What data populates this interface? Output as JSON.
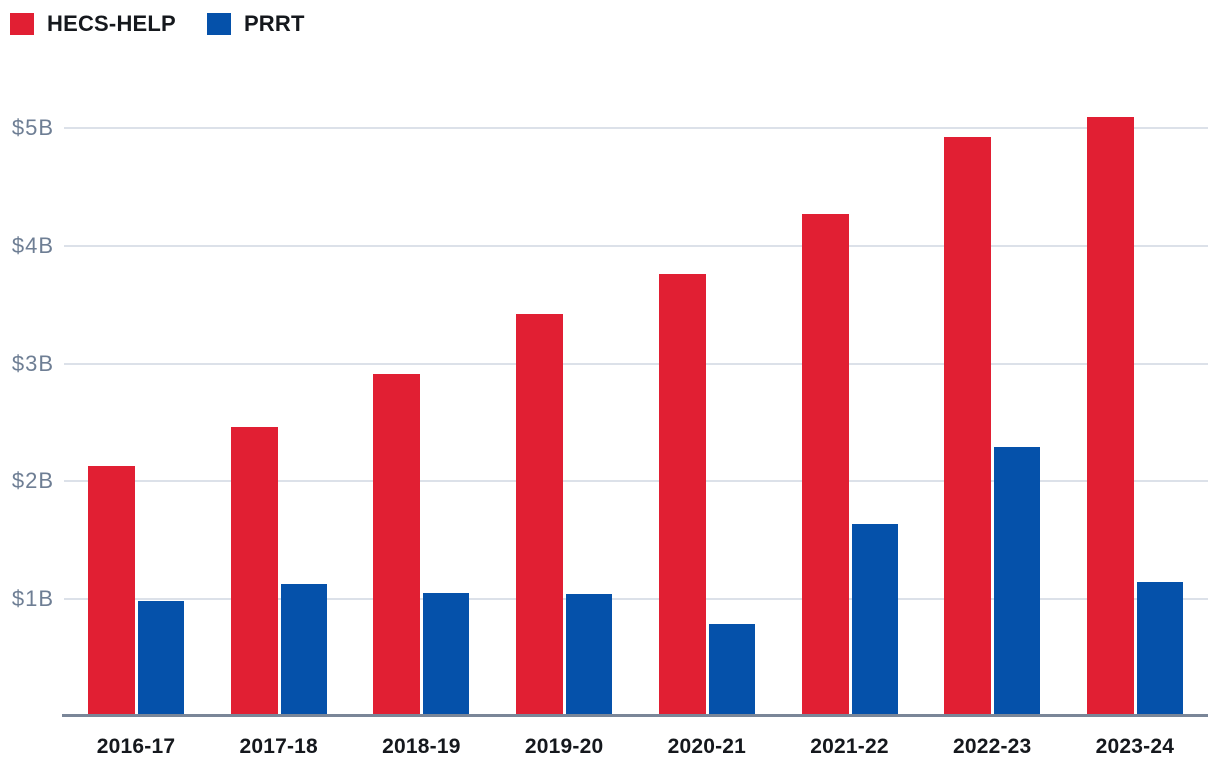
{
  "chart_data": {
    "type": "bar",
    "categories": [
      "2016-17",
      "2017-18",
      "2018-19",
      "2019-20",
      "2020-21",
      "2021-22",
      "2022-23",
      "2023-24"
    ],
    "series": [
      {
        "name": "HECS-HELP",
        "color": "#e11f33",
        "values": [
          2.13,
          2.46,
          2.91,
          3.42,
          3.76,
          4.27,
          4.93,
          5.1
        ]
      },
      {
        "name": "PRRT",
        "color": "#0551aa",
        "values": [
          0.98,
          1.12,
          1.05,
          1.04,
          0.78,
          1.63,
          2.29,
          1.14
        ]
      }
    ],
    "yticks": [
      {
        "value": 1,
        "label": "$1B"
      },
      {
        "value": 2,
        "label": "$2B"
      },
      {
        "value": 3,
        "label": "$3B"
      },
      {
        "value": 4,
        "label": "$4B"
      },
      {
        "value": 5,
        "label": "$5B"
      }
    ],
    "title": "",
    "xlabel": "",
    "ylabel": "",
    "ylim": [
      0,
      5.37
    ],
    "unit": "billions of dollars",
    "grid": "horizontal",
    "legend_position": "top-left",
    "colors": {
      "gridline": "#dce1e9",
      "axis_line": "#7a8698",
      "ytick_text": "#6e7e94",
      "xtick_text": "#15181d",
      "background": "#ffffff"
    }
  }
}
